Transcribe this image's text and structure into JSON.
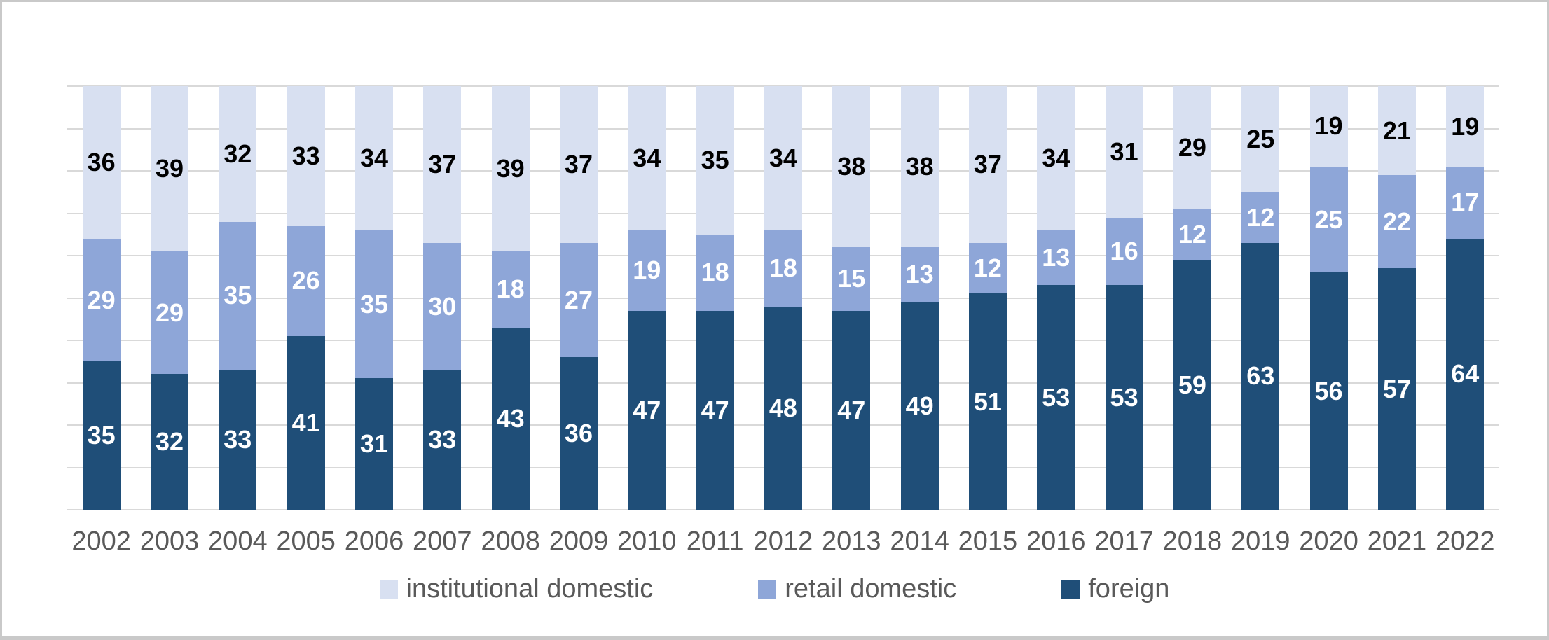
{
  "chart_data": {
    "type": "bar",
    "stacked": true,
    "title": "",
    "xlabel": "",
    "ylabel": "",
    "ylim": [
      0,
      100
    ],
    "gridline_step": 10,
    "grid": true,
    "legend_position": "bottom",
    "stack_order_bottom_to_top": [
      "foreign",
      "retail domestic",
      "institutional domestic"
    ],
    "categories": [
      "2002",
      "2003",
      "2004",
      "2005",
      "2006",
      "2007",
      "2008",
      "2009",
      "2010",
      "2011",
      "2012",
      "2013",
      "2014",
      "2015",
      "2016",
      "2017",
      "2018",
      "2019",
      "2020",
      "2021",
      "2022"
    ],
    "series": [
      {
        "name": "institutional domestic",
        "color": "#d8e0f1",
        "label_color": "#000000",
        "values": [
          36,
          39,
          32,
          33,
          34,
          37,
          39,
          37,
          34,
          35,
          34,
          38,
          38,
          37,
          34,
          31,
          29,
          25,
          19,
          21,
          19
        ]
      },
      {
        "name": "retail domestic",
        "color": "#8ea6d8",
        "label_color": "#ffffff",
        "values": [
          29,
          29,
          35,
          26,
          35,
          30,
          18,
          27,
          19,
          18,
          18,
          15,
          13,
          12,
          13,
          16,
          12,
          12,
          25,
          22,
          17
        ]
      },
      {
        "name": "foreign",
        "color": "#1f4e78",
        "label_color": "#ffffff",
        "values": [
          35,
          32,
          33,
          41,
          31,
          33,
          43,
          36,
          47,
          47,
          48,
          47,
          49,
          51,
          53,
          53,
          59,
          63,
          56,
          57,
          64
        ]
      }
    ]
  },
  "style": {
    "gridline_color": "#d9d9d9",
    "axis_text_color": "#595959",
    "frame_border_color": "#c9c9c9",
    "background": "#ffffff"
  }
}
